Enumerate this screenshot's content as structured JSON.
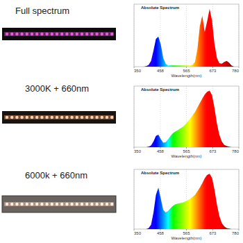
{
  "strip_labels": [
    "Full spectrum",
    "3000K + 660nm",
    "6000k + 660nm"
  ],
  "chart_data": [
    {
      "type": "area",
      "title": "Absolute Spectrum",
      "x_label": "Wavelength(nm)",
      "x": [
        380,
        390,
        400,
        410,
        420,
        430,
        440,
        450,
        460,
        470,
        480,
        490,
        500,
        510,
        520,
        530,
        540,
        550,
        560,
        570,
        580,
        590,
        600,
        610,
        620,
        630,
        640,
        650,
        660,
        670,
        680,
        690,
        700,
        710,
        720,
        730,
        740,
        750,
        760
      ],
      "values": [
        0,
        0,
        0.01,
        0.03,
        0.1,
        0.28,
        0.48,
        0.52,
        0.38,
        0.15,
        0.05,
        0.02,
        0.02,
        0.02,
        0.02,
        0.02,
        0.02,
        0.02,
        0.02,
        0.02,
        0.02,
        0.03,
        0.08,
        0.3,
        0.7,
        0.88,
        0.6,
        0.78,
        1.0,
        0.8,
        0.4,
        0.15,
        0.06,
        0.05,
        0.08,
        0.1,
        0.07,
        0.02,
        0
      ],
      "xlim": [
        350,
        780
      ],
      "xticks": [
        350,
        458,
        565,
        673,
        780
      ],
      "ylim": [
        0,
        1.08
      ],
      "grid": true,
      "tick_labels": "x"
    },
    {
      "type": "area",
      "title": "Absolute Spectrum",
      "x_label": "Wavelength(nm)",
      "x": [
        380,
        390,
        400,
        410,
        420,
        430,
        440,
        450,
        460,
        470,
        480,
        490,
        500,
        510,
        520,
        530,
        540,
        550,
        560,
        570,
        580,
        590,
        600,
        610,
        620,
        630,
        640,
        650,
        660,
        670,
        680,
        690,
        700,
        710,
        720,
        730,
        740,
        750,
        760
      ],
      "values": [
        0,
        0,
        0,
        0.01,
        0.03,
        0.1,
        0.2,
        0.22,
        0.14,
        0.08,
        0.09,
        0.14,
        0.2,
        0.25,
        0.28,
        0.3,
        0.33,
        0.36,
        0.4,
        0.45,
        0.5,
        0.56,
        0.62,
        0.7,
        0.78,
        0.86,
        0.93,
        0.98,
        1.0,
        0.92,
        0.7,
        0.42,
        0.22,
        0.1,
        0.04,
        0.02,
        0.01,
        0,
        0
      ],
      "xlim": [
        350,
        780
      ],
      "xticks": [
        350,
        458,
        565,
        673,
        780
      ],
      "ylim": [
        0,
        1.08
      ],
      "grid": true,
      "tick_labels": "x"
    },
    {
      "type": "area",
      "title": "Absolute Spectrum",
      "x_label": "Wavelength(nm)",
      "x": [
        380,
        390,
        400,
        410,
        420,
        430,
        440,
        450,
        460,
        470,
        480,
        490,
        500,
        510,
        520,
        530,
        540,
        550,
        560,
        570,
        580,
        590,
        600,
        610,
        620,
        630,
        640,
        650,
        660,
        670,
        680,
        690,
        700,
        710,
        720,
        730,
        740,
        750,
        760
      ],
      "values": [
        0,
        0,
        0,
        0.02,
        0.08,
        0.3,
        0.62,
        0.75,
        0.55,
        0.35,
        0.3,
        0.33,
        0.38,
        0.42,
        0.45,
        0.46,
        0.47,
        0.48,
        0.5,
        0.52,
        0.55,
        0.58,
        0.62,
        0.68,
        0.75,
        0.83,
        0.92,
        0.98,
        1.0,
        0.93,
        0.72,
        0.45,
        0.24,
        0.11,
        0.05,
        0.02,
        0.01,
        0,
        0
      ],
      "xlim": [
        350,
        780
      ],
      "xticks": [
        350,
        458,
        565,
        673,
        780
      ],
      "ylim": [
        0,
        1.08
      ],
      "grid": true,
      "tick_labels": "x"
    }
  ]
}
